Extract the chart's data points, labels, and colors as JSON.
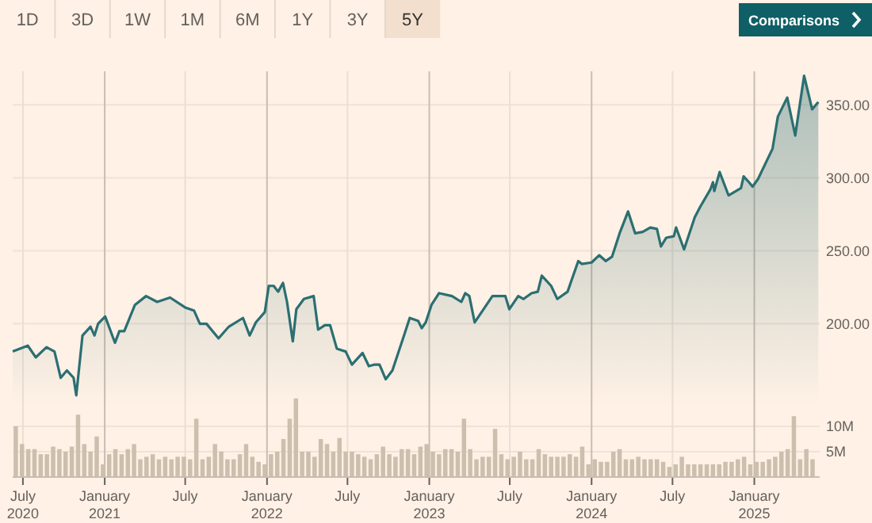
{
  "chart_data": {
    "type": "area",
    "annotations": [
      "1D",
      "3D",
      "1W",
      "1M",
      "6M",
      "1Y",
      "3Y",
      "5Y",
      "Comparisons"
    ],
    "series": [
      {
        "color": "#2b6f72",
        "x": [
          "2020-06-08",
          "2020-07-12",
          "2020-07-30",
          "2020-08-23",
          "2020-09-10",
          "2020-09-24",
          "2020-10-08",
          "2020-10-23",
          "2020-10-29",
          "2020-11-12",
          "2020-11-30",
          "2020-12-09",
          "2020-12-17",
          "2021-01-02",
          "2021-01-24",
          "2021-02-03",
          "2021-02-14",
          "2021-03-10",
          "2021-04-04",
          "2021-04-29",
          "2021-05-28",
          "2021-07-02",
          "2021-07-21",
          "2021-08-03",
          "2021-08-18",
          "2021-09-14",
          "2021-10-07",
          "2021-11-08",
          "2021-11-23",
          "2021-12-07",
          "2021-12-27",
          "2022-01-05",
          "2022-01-16",
          "2022-01-26",
          "2022-02-06",
          "2022-02-15",
          "2022-02-28",
          "2022-03-08",
          "2022-03-25",
          "2022-04-16",
          "2022-04-26",
          "2022-05-11",
          "2022-05-23",
          "2022-06-07",
          "2022-06-27",
          "2022-07-11",
          "2022-08-04",
          "2022-08-18",
          "2022-08-30",
          "2022-09-11",
          "2022-09-25",
          "2022-10-10",
          "2022-11-03",
          "2022-11-18",
          "2022-12-07",
          "2022-12-15",
          "2022-12-24",
          "2023-01-06",
          "2023-01-23",
          "2023-02-21",
          "2023-03-14",
          "2023-03-23",
          "2023-04-01",
          "2023-04-13",
          "2023-05-23",
          "2023-06-21",
          "2023-06-30",
          "2023-07-20",
          "2023-08-01",
          "2023-08-19",
          "2023-09-02",
          "2023-09-11",
          "2023-10-02",
          "2023-10-16",
          "2023-11-08",
          "2023-12-02",
          "2023-12-10",
          "2024-01-01",
          "2024-01-18",
          "2024-02-02",
          "2024-02-16",
          "2024-03-04",
          "2024-03-23",
          "2024-04-08",
          "2024-04-25",
          "2024-05-12",
          "2024-05-27",
          "2024-06-05",
          "2024-06-17",
          "2024-07-04",
          "2024-07-09",
          "2024-07-27",
          "2024-08-20",
          "2024-09-01",
          "2024-09-24",
          "2024-09-30",
          "2024-10-03",
          "2024-10-15",
          "2024-11-04",
          "2024-12-02",
          "2024-12-08",
          "2024-12-20",
          "2024-12-28",
          "2025-01-09",
          "2025-02-11",
          "2025-02-23",
          "2025-03-16",
          "2025-04-03",
          "2025-04-23",
          "2025-05-11",
          "2025-05-25"
        ],
        "values": [
          181,
          185,
          177,
          184,
          181,
          163,
          168,
          163,
          151,
          192,
          198,
          192,
          200,
          205,
          187,
          195,
          195,
          213,
          219,
          215,
          218,
          211,
          209,
          200,
          200,
          190,
          198,
          204,
          192,
          201,
          208,
          226,
          226,
          222,
          228,
          215,
          188,
          210,
          217,
          219,
          196,
          199,
          199,
          183,
          181,
          172,
          180,
          171,
          172,
          172,
          162,
          168,
          190,
          204,
          202,
          197,
          201,
          213,
          221,
          219,
          215,
          221,
          219,
          201,
          219,
          219,
          210,
          219,
          217,
          221,
          222,
          233,
          226,
          217,
          222,
          243,
          241,
          242,
          247,
          243,
          246,
          262,
          277,
          262,
          263,
          266,
          265,
          253,
          259,
          260,
          266,
          251,
          273,
          280,
          292,
          297,
          291,
          304,
          288,
          293,
          301,
          297,
          294,
          299,
          320,
          342,
          355,
          329,
          370,
          347,
          352
        ]
      },
      {
        "type": "bar",
        "axis": "y2",
        "color": "#cdbfae",
        "x": [
          "2020-06-15",
          "2020-06-29",
          "2020-07-13",
          "2020-07-27",
          "2020-08-10",
          "2020-08-24",
          "2020-09-07",
          "2020-09-21",
          "2020-10-05",
          "2020-10-19",
          "2020-11-02",
          "2020-11-16",
          "2020-11-30",
          "2020-12-14",
          "2020-12-28",
          "2021-01-11",
          "2021-01-25",
          "2021-02-08",
          "2021-02-22",
          "2021-03-08",
          "2021-03-22",
          "2021-04-05",
          "2021-04-19",
          "2021-05-03",
          "2021-05-17",
          "2021-05-31",
          "2021-06-14",
          "2021-06-28",
          "2021-07-12",
          "2021-07-26",
          "2021-08-09",
          "2021-08-23",
          "2021-09-06",
          "2021-09-20",
          "2021-10-04",
          "2021-10-18",
          "2021-11-01",
          "2021-11-15",
          "2021-11-29",
          "2021-12-13",
          "2021-12-27",
          "2022-01-10",
          "2022-01-24",
          "2022-02-07",
          "2022-02-21",
          "2022-03-07",
          "2022-03-21",
          "2022-04-04",
          "2022-04-18",
          "2022-05-02",
          "2022-05-16",
          "2022-05-30",
          "2022-06-13",
          "2022-06-27",
          "2022-07-11",
          "2022-07-25",
          "2022-08-08",
          "2022-08-22",
          "2022-09-05",
          "2022-09-19",
          "2022-10-03",
          "2022-10-17",
          "2022-10-31",
          "2022-11-14",
          "2022-11-28",
          "2022-12-12",
          "2022-12-26",
          "2023-01-09",
          "2023-01-23",
          "2023-02-06",
          "2023-02-20",
          "2023-03-06",
          "2023-03-20",
          "2023-04-03",
          "2023-04-17",
          "2023-05-01",
          "2023-05-15",
          "2023-05-29",
          "2023-06-12",
          "2023-06-26",
          "2023-07-10",
          "2023-07-24",
          "2023-08-07",
          "2023-08-21",
          "2023-09-04",
          "2023-09-18",
          "2023-10-02",
          "2023-10-16",
          "2023-10-30",
          "2023-11-13",
          "2023-11-27",
          "2023-12-11",
          "2023-12-25",
          "2024-01-08",
          "2024-01-22",
          "2024-02-05",
          "2024-02-19",
          "2024-03-04",
          "2024-03-18",
          "2024-04-01",
          "2024-04-15",
          "2024-04-29",
          "2024-05-13",
          "2024-05-27",
          "2024-06-10",
          "2024-06-24",
          "2024-07-08",
          "2024-07-22",
          "2024-08-05",
          "2024-08-19",
          "2024-09-02",
          "2024-09-16",
          "2024-09-30",
          "2024-10-14",
          "2024-10-28",
          "2024-11-11",
          "2024-11-25",
          "2024-12-09",
          "2024-12-23",
          "2025-01-06",
          "2025-01-20",
          "2025-02-03",
          "2025-02-17",
          "2025-03-03",
          "2025-03-17",
          "2025-03-31",
          "2025-04-14",
          "2025-04-28",
          "2025-05-12"
        ],
        "values": [
          10,
          6.5,
          5.5,
          5.5,
          4.5,
          4.5,
          6,
          5.5,
          5,
          6,
          12.3,
          6.5,
          5,
          8,
          2.5,
          4.5,
          5.5,
          4.5,
          5.5,
          6.5,
          3.5,
          4,
          4.5,
          3.5,
          4,
          3.5,
          4,
          4,
          3.5,
          11.5,
          3.5,
          4,
          6.5,
          5,
          3.5,
          3.5,
          4.5,
          6.5,
          4,
          3,
          2.5,
          4.5,
          5,
          7.5,
          11.5,
          15.5,
          5,
          5,
          4,
          7.5,
          6.5,
          5,
          7.7,
          5,
          5,
          4.5,
          4,
          3.5,
          4.5,
          6,
          4.5,
          4,
          5.5,
          5.5,
          4.5,
          6,
          6.5,
          5,
          4.5,
          5.5,
          5.5,
          5,
          11.5,
          5.5,
          3.5,
          4,
          4,
          9.5,
          4.5,
          3.5,
          4,
          5,
          3.5,
          3.5,
          5.5,
          4.5,
          4,
          4,
          4,
          4.5,
          4,
          6,
          2.5,
          3.5,
          3,
          3,
          5,
          5.5,
          3.5,
          3.5,
          4,
          3.5,
          3.5,
          3.5,
          3,
          2,
          2.5,
          4,
          2.5,
          2.5,
          2.5,
          2.5,
          2.5,
          2.5,
          3,
          3,
          3.5,
          4,
          2.5,
          3,
          3,
          3.5,
          4,
          5,
          5.5,
          12,
          3.5,
          5.5,
          3.5
        ]
      }
    ],
    "xlim": [
      "2020-06-08",
      "2025-05-28"
    ],
    "xticks": [
      {
        "value": "2020-07-01",
        "label": "July 2020"
      },
      {
        "value": "2021-01-01",
        "label": "January 2021"
      },
      {
        "value": "2021-07-01",
        "label": "July"
      },
      {
        "value": "2022-01-01",
        "label": "January 2022"
      },
      {
        "value": "2022-07-01",
        "label": "July"
      },
      {
        "value": "2023-01-01",
        "label": "January 2023"
      },
      {
        "value": "2023-07-01",
        "label": "July"
      },
      {
        "value": "2024-01-01",
        "label": "January 2024"
      },
      {
        "value": "2024-07-01",
        "label": "July"
      },
      {
        "value": "2025-01-01",
        "label": "January 2025"
      }
    ],
    "ylim": [
      95,
      373
    ],
    "yticks": [
      {
        "value": 200,
        "label": "200.00"
      },
      {
        "value": 250,
        "label": "250.00"
      },
      {
        "value": 300,
        "label": "300.00"
      },
      {
        "value": 350,
        "label": "350.00"
      }
    ],
    "y2lim": [
      0,
      80
    ],
    "y2ticks": [
      {
        "value": 5,
        "label": "5M"
      },
      {
        "value": 10,
        "label": "10M"
      }
    ],
    "grid": true
  }
}
